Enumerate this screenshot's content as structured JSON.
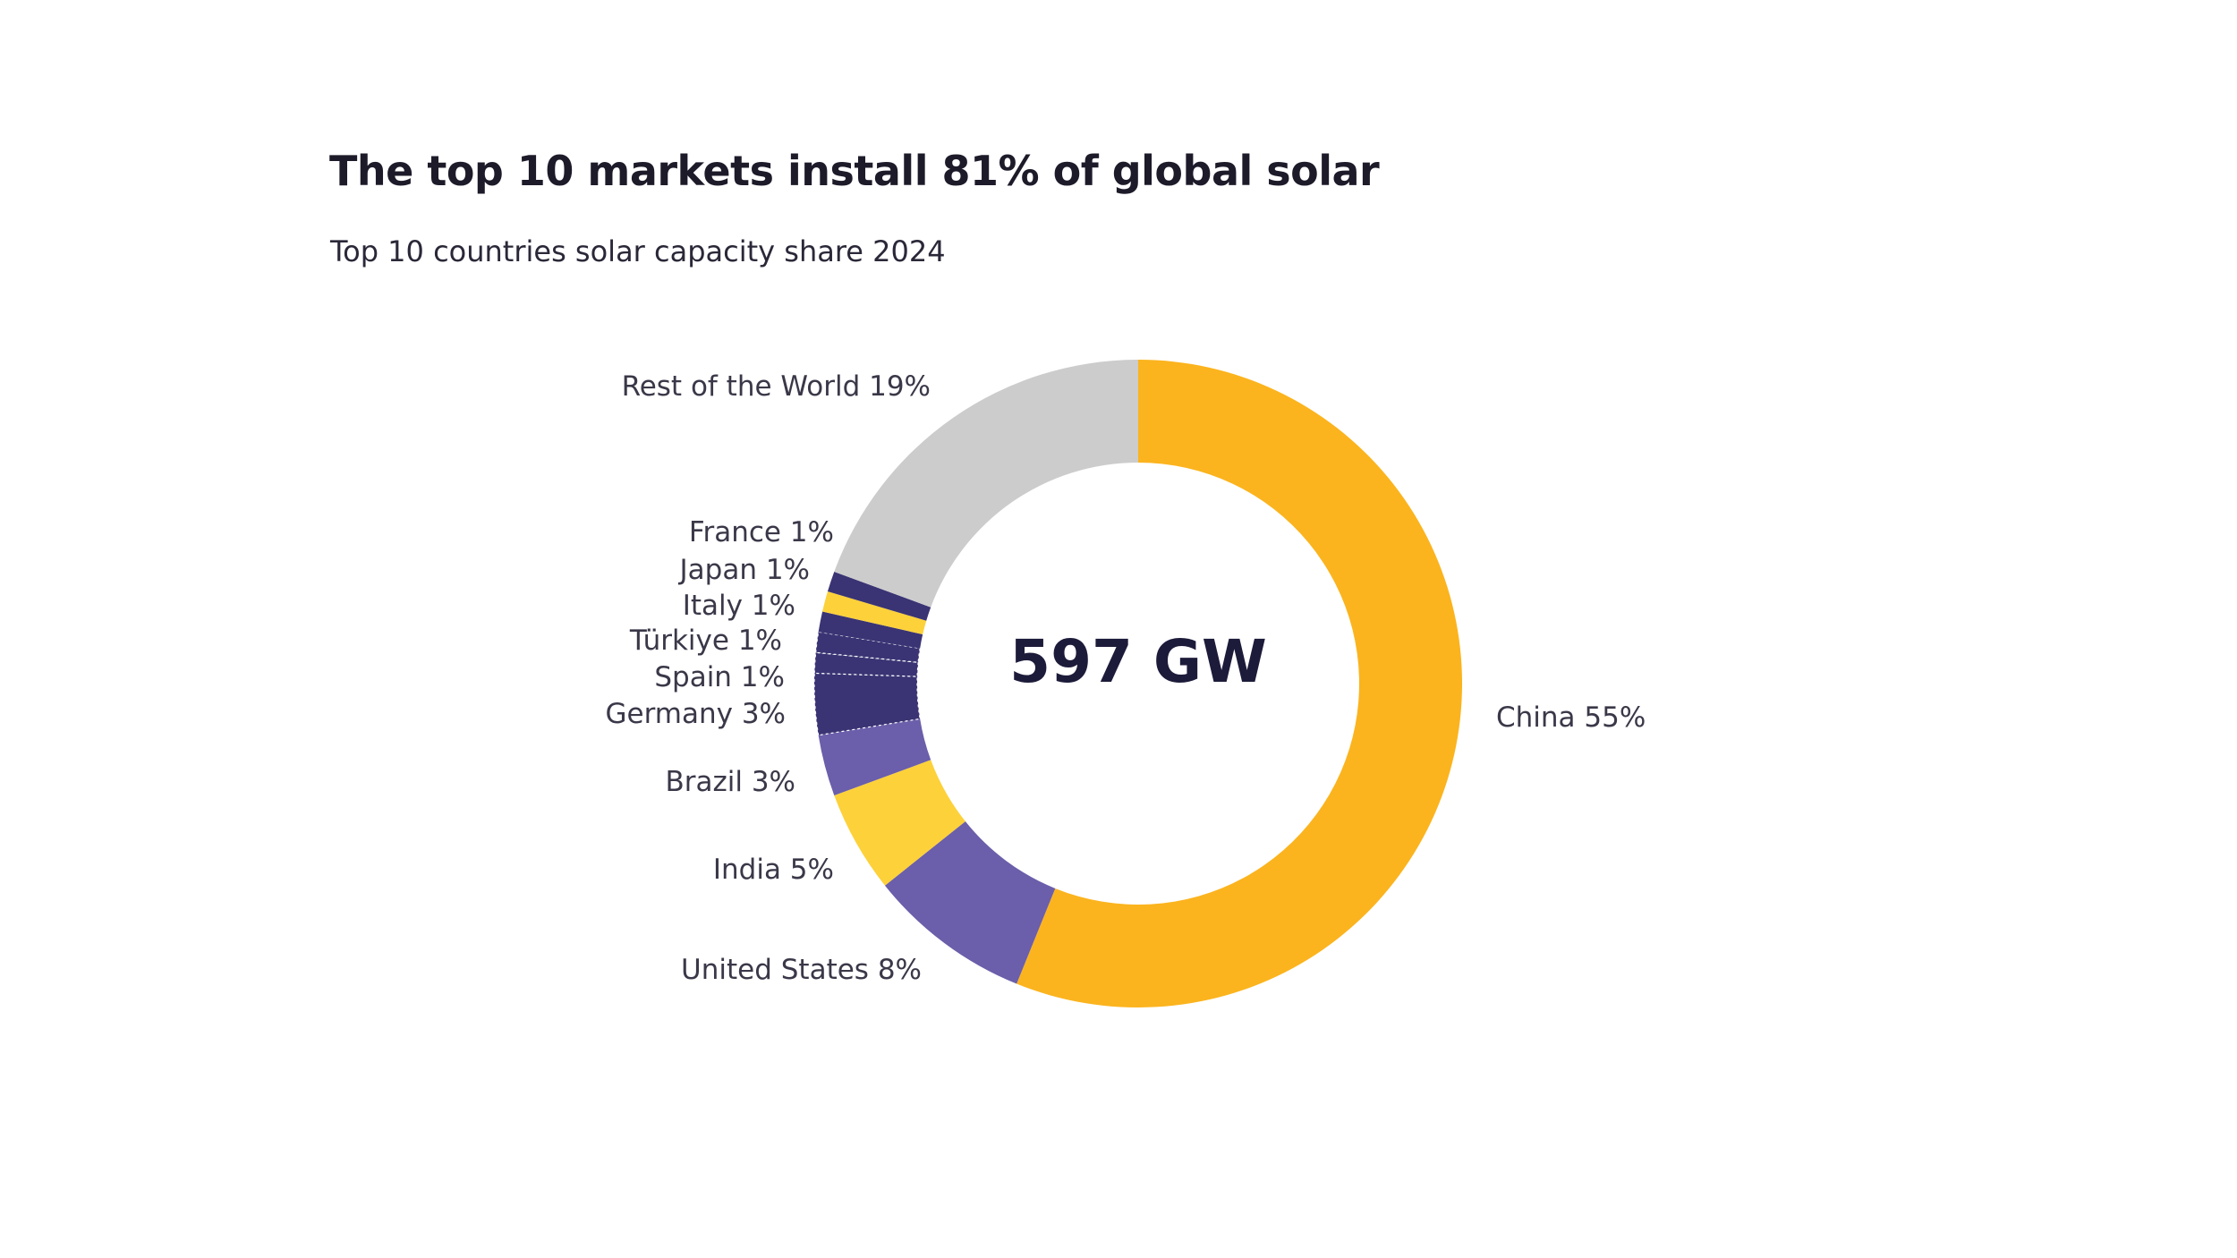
{
  "chart_data": {
    "type": "pie",
    "variant": "donut",
    "title": "The top 10 markets install 81% of global solar",
    "subtitle": "Top 10 countries solar capacity share 2024",
    "center_label": "597 GW",
    "legend": "none",
    "slices": [
      {
        "label": "China 55%",
        "name": "China",
        "value": 55,
        "color": "#fbb41e"
      },
      {
        "label": "United States 8%",
        "name": "United States",
        "value": 8,
        "color": "#6b5eaa"
      },
      {
        "label": "India 5%",
        "name": "India",
        "value": 5,
        "color": "#fdd13a"
      },
      {
        "label": "Brazil 3%",
        "name": "Brazil",
        "value": 3,
        "color": "#6b5eaa"
      },
      {
        "label": "Germany 3%",
        "name": "Germany",
        "value": 3,
        "color": "#3a3474"
      },
      {
        "label": "Spain 1%",
        "name": "Spain",
        "value": 1,
        "color": "#3a3474"
      },
      {
        "label": "Türkiye 1%",
        "name": "Türkiye",
        "value": 1,
        "color": "#3a3474"
      },
      {
        "label": "Italy 1%",
        "name": "Italy",
        "value": 1,
        "color": "#3a3474"
      },
      {
        "label": "Japan 1%",
        "name": "Japan",
        "value": 1,
        "color": "#fdd13a"
      },
      {
        "label": "France 1%",
        "name": "France",
        "value": 1,
        "color": "#3a3474"
      },
      {
        "label": "Rest of the World 19%",
        "name": "Rest of the World",
        "value": 19,
        "color": "#cccccc"
      }
    ]
  }
}
